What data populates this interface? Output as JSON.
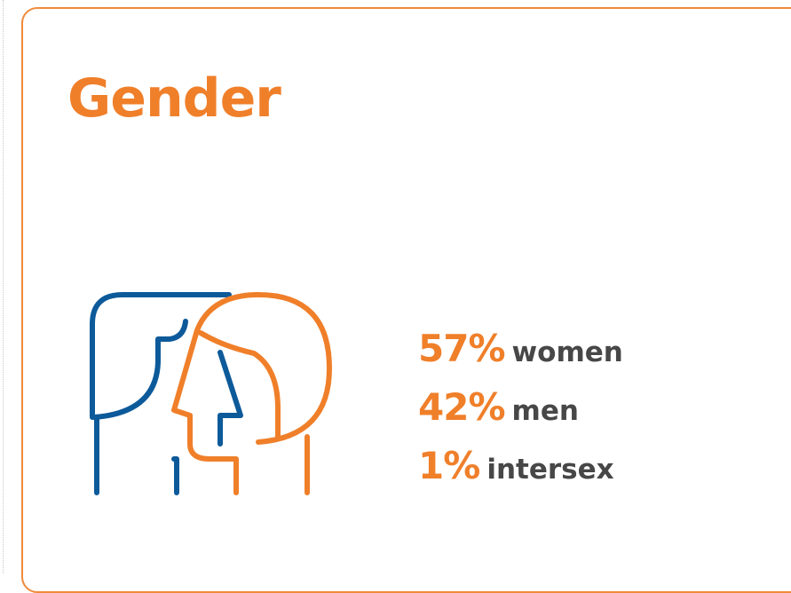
{
  "card": {
    "title": "Gender",
    "stats": [
      {
        "percent": "57%",
        "label": "women"
      },
      {
        "percent": "42%",
        "label": "men"
      },
      {
        "percent": "1%",
        "label": "intersex"
      }
    ]
  }
}
